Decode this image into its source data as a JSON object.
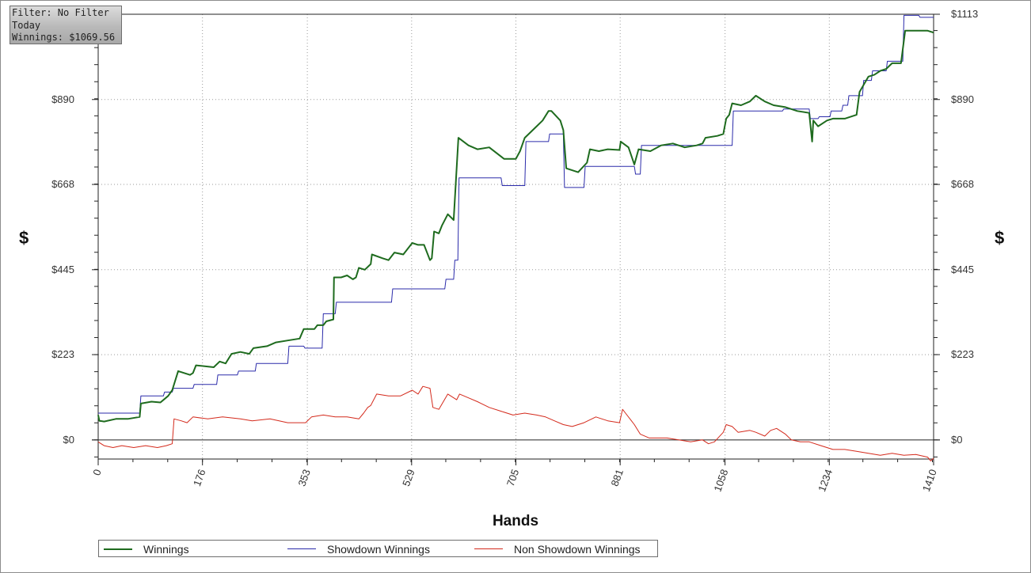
{
  "info": {
    "filter": "Filter: No Filter",
    "period": "Today",
    "winnings": "Winnings: $1069.56"
  },
  "chart_data": {
    "type": "line",
    "title": "",
    "xlabel": "Hands",
    "ylabel": "$",
    "xlim": [
      0,
      1410
    ],
    "ylim": [
      -50,
      1113
    ],
    "x_ticks": [
      "0",
      "176",
      "353",
      "529",
      "705",
      "881",
      "1058",
      "1234",
      "1410"
    ],
    "x_tick_values": [
      0,
      176,
      353,
      529,
      705,
      881,
      1058,
      1234,
      1410
    ],
    "y_ticks": [
      "$0",
      "$223",
      "$445",
      "$668",
      "$890",
      "$1113"
    ],
    "y_tick_values": [
      0,
      223,
      445,
      668,
      890,
      1113
    ],
    "grid": true,
    "legend_position": "bottom-left",
    "series": [
      {
        "name": "Winnings",
        "color": "#1e6b1e",
        "points": [
          [
            0,
            65
          ],
          [
            2,
            50
          ],
          [
            10,
            48
          ],
          [
            30,
            55
          ],
          [
            50,
            55
          ],
          [
            70,
            60
          ],
          [
            72,
            95
          ],
          [
            90,
            100
          ],
          [
            105,
            98
          ],
          [
            118,
            115
          ],
          [
            125,
            130
          ],
          [
            135,
            180
          ],
          [
            155,
            170
          ],
          [
            160,
            175
          ],
          [
            165,
            195
          ],
          [
            195,
            190
          ],
          [
            205,
            205
          ],
          [
            215,
            200
          ],
          [
            225,
            225
          ],
          [
            240,
            230
          ],
          [
            255,
            225
          ],
          [
            262,
            240
          ],
          [
            285,
            245
          ],
          [
            300,
            255
          ],
          [
            320,
            260
          ],
          [
            340,
            265
          ],
          [
            347,
            290
          ],
          [
            365,
            290
          ],
          [
            370,
            300
          ],
          [
            380,
            300
          ],
          [
            385,
            310
          ],
          [
            397,
            315
          ],
          [
            398,
            425
          ],
          [
            410,
            425
          ],
          [
            420,
            430
          ],
          [
            430,
            420
          ],
          [
            435,
            425
          ],
          [
            440,
            450
          ],
          [
            450,
            445
          ],
          [
            460,
            460
          ],
          [
            462,
            485
          ],
          [
            480,
            475
          ],
          [
            490,
            470
          ],
          [
            500,
            490
          ],
          [
            515,
            485
          ],
          [
            530,
            515
          ],
          [
            540,
            510
          ],
          [
            550,
            510
          ],
          [
            560,
            470
          ],
          [
            563,
            475
          ],
          [
            567,
            545
          ],
          [
            575,
            540
          ],
          [
            580,
            560
          ],
          [
            590,
            590
          ],
          [
            600,
            575
          ],
          [
            608,
            790
          ],
          [
            625,
            770
          ],
          [
            640,
            760
          ],
          [
            660,
            765
          ],
          [
            685,
            735
          ],
          [
            705,
            735
          ],
          [
            712,
            755
          ],
          [
            720,
            790
          ],
          [
            740,
            820
          ],
          [
            750,
            835
          ],
          [
            760,
            860
          ],
          [
            765,
            860
          ],
          [
            780,
            835
          ],
          [
            785,
            810
          ],
          [
            790,
            710
          ],
          [
            810,
            700
          ],
          [
            825,
            725
          ],
          [
            830,
            760
          ],
          [
            845,
            755
          ],
          [
            860,
            760
          ],
          [
            880,
            758
          ],
          [
            882,
            780
          ],
          [
            895,
            765
          ],
          [
            905,
            720
          ],
          [
            912,
            760
          ],
          [
            932,
            755
          ],
          [
            950,
            770
          ],
          [
            970,
            775
          ],
          [
            990,
            765
          ],
          [
            1010,
            770
          ],
          [
            1020,
            775
          ],
          [
            1025,
            790
          ],
          [
            1045,
            795
          ],
          [
            1055,
            800
          ],
          [
            1060,
            840
          ],
          [
            1065,
            850
          ],
          [
            1070,
            880
          ],
          [
            1085,
            875
          ],
          [
            1100,
            885
          ],
          [
            1110,
            900
          ],
          [
            1125,
            885
          ],
          [
            1140,
            875
          ],
          [
            1160,
            870
          ],
          [
            1180,
            860
          ],
          [
            1200,
            855
          ],
          [
            1205,
            780
          ],
          [
            1207,
            835
          ],
          [
            1215,
            820
          ],
          [
            1230,
            835
          ],
          [
            1240,
            840
          ],
          [
            1260,
            840
          ],
          [
            1280,
            850
          ],
          [
            1285,
            910
          ],
          [
            1300,
            950
          ],
          [
            1310,
            955
          ],
          [
            1320,
            965
          ],
          [
            1330,
            970
          ],
          [
            1340,
            985
          ],
          [
            1355,
            985
          ],
          [
            1362,
            1070
          ],
          [
            1380,
            1070
          ],
          [
            1400,
            1070
          ],
          [
            1410,
            1065
          ]
        ]
      },
      {
        "name": "Showdown Winnings",
        "color": "#2b2baa",
        "points": [
          [
            0,
            70
          ],
          [
            70,
            70
          ],
          [
            72,
            115
          ],
          [
            110,
            115
          ],
          [
            112,
            125
          ],
          [
            125,
            125
          ],
          [
            127,
            135
          ],
          [
            160,
            135
          ],
          [
            162,
            145
          ],
          [
            200,
            145
          ],
          [
            202,
            170
          ],
          [
            235,
            170
          ],
          [
            237,
            180
          ],
          [
            265,
            180
          ],
          [
            267,
            200
          ],
          [
            320,
            200
          ],
          [
            322,
            245
          ],
          [
            347,
            245
          ],
          [
            349,
            240
          ],
          [
            378,
            240
          ],
          [
            380,
            330
          ],
          [
            400,
            330
          ],
          [
            402,
            360
          ],
          [
            495,
            360
          ],
          [
            497,
            395
          ],
          [
            585,
            395
          ],
          [
            587,
            420
          ],
          [
            600,
            420
          ],
          [
            602,
            470
          ],
          [
            607,
            470
          ],
          [
            609,
            685
          ],
          [
            680,
            685
          ],
          [
            682,
            665
          ],
          [
            720,
            665
          ],
          [
            722,
            780
          ],
          [
            760,
            780
          ],
          [
            762,
            800
          ],
          [
            785,
            800
          ],
          [
            787,
            660
          ],
          [
            820,
            660
          ],
          [
            822,
            715
          ],
          [
            905,
            715
          ],
          [
            907,
            695
          ],
          [
            915,
            695
          ],
          [
            917,
            770
          ],
          [
            1070,
            770
          ],
          [
            1072,
            860
          ],
          [
            1155,
            860
          ],
          [
            1157,
            865
          ],
          [
            1200,
            865
          ],
          [
            1202,
            840
          ],
          [
            1215,
            840
          ],
          [
            1217,
            845
          ],
          [
            1235,
            845
          ],
          [
            1237,
            860
          ],
          [
            1255,
            860
          ],
          [
            1257,
            875
          ],
          [
            1265,
            875
          ],
          [
            1267,
            900
          ],
          [
            1290,
            900
          ],
          [
            1292,
            940
          ],
          [
            1305,
            940
          ],
          [
            1307,
            965
          ],
          [
            1330,
            965
          ],
          [
            1332,
            990
          ],
          [
            1358,
            990
          ],
          [
            1360,
            1110
          ],
          [
            1385,
            1110
          ],
          [
            1387,
            1105
          ],
          [
            1410,
            1105
          ]
        ]
      },
      {
        "name": "Non Showdown Winnings",
        "color": "#d42a1c",
        "points": [
          [
            0,
            -5
          ],
          [
            10,
            -15
          ],
          [
            25,
            -20
          ],
          [
            40,
            -15
          ],
          [
            60,
            -20
          ],
          [
            80,
            -15
          ],
          [
            100,
            -20
          ],
          [
            115,
            -15
          ],
          [
            125,
            -10
          ],
          [
            128,
            55
          ],
          [
            140,
            50
          ],
          [
            150,
            45
          ],
          [
            160,
            60
          ],
          [
            185,
            55
          ],
          [
            210,
            60
          ],
          [
            240,
            55
          ],
          [
            260,
            50
          ],
          [
            290,
            55
          ],
          [
            320,
            45
          ],
          [
            350,
            45
          ],
          [
            360,
            60
          ],
          [
            380,
            65
          ],
          [
            400,
            60
          ],
          [
            420,
            60
          ],
          [
            440,
            55
          ],
          [
            448,
            70
          ],
          [
            455,
            85
          ],
          [
            460,
            90
          ],
          [
            470,
            120
          ],
          [
            490,
            115
          ],
          [
            510,
            115
          ],
          [
            530,
            130
          ],
          [
            540,
            120
          ],
          [
            548,
            140
          ],
          [
            560,
            135
          ],
          [
            565,
            85
          ],
          [
            575,
            80
          ],
          [
            590,
            120
          ],
          [
            605,
            105
          ],
          [
            610,
            120
          ],
          [
            625,
            110
          ],
          [
            640,
            100
          ],
          [
            660,
            85
          ],
          [
            680,
            75
          ],
          [
            700,
            65
          ],
          [
            720,
            70
          ],
          [
            740,
            65
          ],
          [
            755,
            60
          ],
          [
            770,
            50
          ],
          [
            785,
            40
          ],
          [
            800,
            35
          ],
          [
            820,
            45
          ],
          [
            840,
            60
          ],
          [
            860,
            50
          ],
          [
            880,
            45
          ],
          [
            885,
            80
          ],
          [
            890,
            70
          ],
          [
            900,
            50
          ],
          [
            905,
            40
          ],
          [
            915,
            15
          ],
          [
            930,
            5
          ],
          [
            960,
            5
          ],
          [
            1000,
            -5
          ],
          [
            1020,
            0
          ],
          [
            1030,
            -10
          ],
          [
            1040,
            -5
          ],
          [
            1055,
            20
          ],
          [
            1060,
            40
          ],
          [
            1070,
            35
          ],
          [
            1080,
            20
          ],
          [
            1100,
            25
          ],
          [
            1110,
            20
          ],
          [
            1125,
            10
          ],
          [
            1135,
            25
          ],
          [
            1145,
            30
          ],
          [
            1155,
            20
          ],
          [
            1160,
            15
          ],
          [
            1170,
            0
          ],
          [
            1185,
            -5
          ],
          [
            1200,
            -5
          ],
          [
            1220,
            -15
          ],
          [
            1240,
            -25
          ],
          [
            1260,
            -25
          ],
          [
            1280,
            -30
          ],
          [
            1300,
            -35
          ],
          [
            1320,
            -40
          ],
          [
            1340,
            -35
          ],
          [
            1360,
            -40
          ],
          [
            1380,
            -38
          ],
          [
            1400,
            -45
          ],
          [
            1405,
            -55
          ],
          [
            1410,
            -48
          ]
        ]
      }
    ]
  },
  "legend": {
    "items": [
      {
        "label": "Winnings",
        "color": "#1e6b1e"
      },
      {
        "label": "Showdown Winnings",
        "color": "#2b2baa"
      },
      {
        "label": "Non Showdown Winnings",
        "color": "#d42a1c"
      }
    ]
  }
}
